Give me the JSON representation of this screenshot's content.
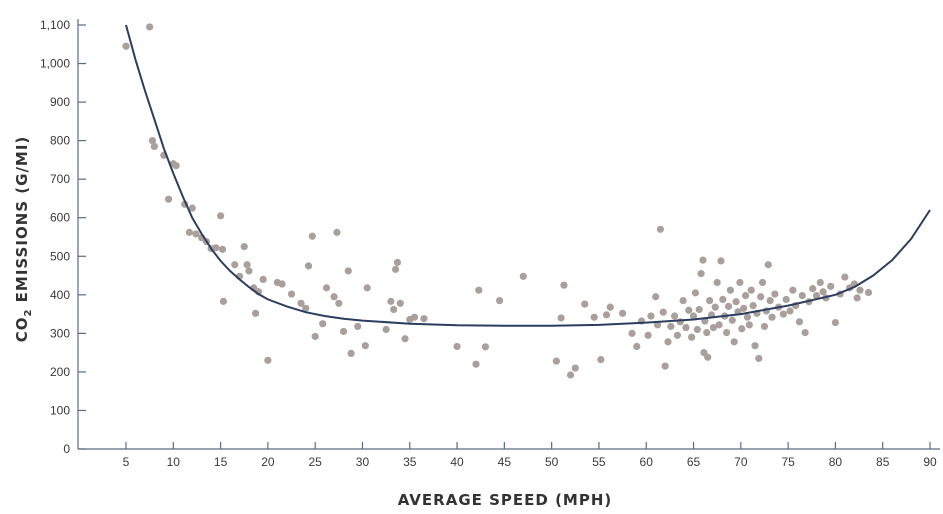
{
  "chart_data": {
    "type": "scatter",
    "title": "",
    "xlabel": "AVERAGE SPEED (MPH)",
    "ylabel": {
      "prefix": "CO",
      "subscript": "2",
      "suffix": " EMISSIONS (G/MI)"
    },
    "xlim": [
      5,
      90
    ],
    "ylim": [
      0,
      1100
    ],
    "x_ticks": [
      5,
      10,
      15,
      20,
      25,
      30,
      35,
      40,
      45,
      50,
      55,
      60,
      65,
      70,
      75,
      80,
      85,
      90
    ],
    "x_tick_labels": [
      "5",
      "10",
      "15",
      "20",
      "25",
      "30",
      "35",
      "40",
      "45",
      "50",
      "55",
      "60",
      "65",
      "70",
      "75",
      "80",
      "85",
      "90"
    ],
    "y_ticks": [
      0,
      100,
      200,
      300,
      400,
      500,
      600,
      700,
      800,
      900,
      1000,
      1100
    ],
    "y_tick_labels": [
      "0",
      "100",
      "200",
      "300",
      "400",
      "500",
      "600",
      "700",
      "800",
      "900",
      "1,000",
      "1,100"
    ],
    "grid": false,
    "colors": {
      "points": "#a9a09c",
      "curve": "#2c3e5f",
      "axis": "#5a6a85",
      "text": "#333333"
    },
    "series": [
      {
        "type": "scatter",
        "points": [
          [
            5.0,
            1045
          ],
          [
            7.5,
            1095
          ],
          [
            7.8,
            800
          ],
          [
            8.0,
            785
          ],
          [
            9.0,
            762
          ],
          [
            9.5,
            648
          ],
          [
            10.0,
            740
          ],
          [
            10.3,
            735
          ],
          [
            11.2,
            635
          ],
          [
            12.0,
            625
          ],
          [
            11.7,
            562
          ],
          [
            12.4,
            558
          ],
          [
            13.0,
            548
          ],
          [
            13.5,
            538
          ],
          [
            14.0,
            520
          ],
          [
            14.5,
            522
          ],
          [
            15.0,
            605
          ],
          [
            15.2,
            518
          ],
          [
            15.3,
            383
          ],
          [
            16.5,
            478
          ],
          [
            17.0,
            448
          ],
          [
            17.5,
            525
          ],
          [
            17.8,
            478
          ],
          [
            18.0,
            462
          ],
          [
            18.5,
            418
          ],
          [
            18.7,
            352
          ],
          [
            19.0,
            408
          ],
          [
            19.5,
            440
          ],
          [
            20.0,
            230
          ],
          [
            21.0,
            432
          ],
          [
            21.5,
            428
          ],
          [
            22.5,
            402
          ],
          [
            23.5,
            378
          ],
          [
            24.0,
            365
          ],
          [
            24.3,
            475
          ],
          [
            24.7,
            552
          ],
          [
            25.0,
            292
          ],
          [
            25.8,
            325
          ],
          [
            26.2,
            418
          ],
          [
            27.0,
            395
          ],
          [
            27.3,
            562
          ],
          [
            27.5,
            378
          ],
          [
            28.0,
            305
          ],
          [
            28.5,
            462
          ],
          [
            28.8,
            248
          ],
          [
            29.5,
            318
          ],
          [
            30.5,
            418
          ],
          [
            30.3,
            268
          ],
          [
            32.5,
            310
          ],
          [
            33.0,
            383
          ],
          [
            33.3,
            362
          ],
          [
            33.5,
            466
          ],
          [
            33.7,
            484
          ],
          [
            34.0,
            378
          ],
          [
            34.5,
            286
          ],
          [
            35.0,
            336
          ],
          [
            35.5,
            342
          ],
          [
            36.5,
            338
          ],
          [
            40.0,
            266
          ],
          [
            42.0,
            220
          ],
          [
            42.3,
            412
          ],
          [
            43.0,
            265
          ],
          [
            44.5,
            385
          ],
          [
            47.0,
            448
          ],
          [
            50.5,
            228
          ],
          [
            51.0,
            340
          ],
          [
            51.3,
            425
          ],
          [
            52.0,
            192
          ],
          [
            52.5,
            210
          ],
          [
            53.5,
            376
          ],
          [
            54.5,
            342
          ],
          [
            55.2,
            232
          ],
          [
            55.8,
            348
          ],
          [
            56.2,
            368
          ],
          [
            57.5,
            352
          ],
          [
            58.5,
            300
          ],
          [
            59.0,
            266
          ],
          [
            59.5,
            332
          ],
          [
            60.2,
            295
          ],
          [
            60.5,
            345
          ],
          [
            61.0,
            395
          ],
          [
            61.2,
            322
          ],
          [
            61.5,
            570
          ],
          [
            61.8,
            355
          ],
          [
            62.0,
            215
          ],
          [
            62.3,
            278
          ],
          [
            62.6,
            318
          ],
          [
            63.0,
            345
          ],
          [
            63.3,
            295
          ],
          [
            63.6,
            330
          ],
          [
            63.9,
            385
          ],
          [
            64.2,
            315
          ],
          [
            64.5,
            360
          ],
          [
            64.8,
            290
          ],
          [
            65.0,
            345
          ],
          [
            65.2,
            405
          ],
          [
            65.4,
            310
          ],
          [
            65.6,
            362
          ],
          [
            65.8,
            455
          ],
          [
            66.0,
            490
          ],
          [
            66.1,
            250
          ],
          [
            66.2,
            332
          ],
          [
            66.4,
            302
          ],
          [
            66.5,
            238
          ],
          [
            66.7,
            385
          ],
          [
            66.9,
            348
          ],
          [
            67.1,
            315
          ],
          [
            67.3,
            368
          ],
          [
            67.5,
            432
          ],
          [
            67.7,
            322
          ],
          [
            67.9,
            488
          ],
          [
            68.1,
            388
          ],
          [
            68.3,
            345
          ],
          [
            68.5,
            302
          ],
          [
            68.7,
            370
          ],
          [
            68.9,
            412
          ],
          [
            69.1,
            334
          ],
          [
            69.3,
            278
          ],
          [
            69.5,
            382
          ],
          [
            69.7,
            356
          ],
          [
            69.9,
            432
          ],
          [
            70.1,
            312
          ],
          [
            70.3,
            365
          ],
          [
            70.5,
            398
          ],
          [
            70.7,
            342
          ],
          [
            70.9,
            322
          ],
          [
            71.1,
            412
          ],
          [
            71.3,
            372
          ],
          [
            71.5,
            268
          ],
          [
            71.7,
            352
          ],
          [
            71.9,
            235
          ],
          [
            72.1,
            395
          ],
          [
            72.3,
            432
          ],
          [
            72.5,
            318
          ],
          [
            72.7,
            358
          ],
          [
            72.9,
            478
          ],
          [
            73.1,
            385
          ],
          [
            73.3,
            342
          ],
          [
            73.6,
            402
          ],
          [
            74.0,
            368
          ],
          [
            74.5,
            350
          ],
          [
            74.8,
            388
          ],
          [
            75.2,
            358
          ],
          [
            75.5,
            412
          ],
          [
            75.8,
            372
          ],
          [
            76.2,
            330
          ],
          [
            76.5,
            398
          ],
          [
            76.8,
            302
          ],
          [
            77.2,
            382
          ],
          [
            77.6,
            416
          ],
          [
            78.0,
            398
          ],
          [
            78.4,
            432
          ],
          [
            78.7,
            408
          ],
          [
            79.0,
            392
          ],
          [
            79.5,
            422
          ],
          [
            80.0,
            328
          ],
          [
            80.5,
            402
          ],
          [
            81.0,
            446
          ],
          [
            81.5,
            418
          ],
          [
            82.0,
            428
          ],
          [
            82.3,
            392
          ],
          [
            82.6,
            412
          ],
          [
            83.5,
            406
          ]
        ]
      },
      {
        "type": "line",
        "points": [
          [
            5.0,
            1100
          ],
          [
            6.0,
            1010
          ],
          [
            7.0,
            930
          ],
          [
            8.0,
            855
          ],
          [
            9.0,
            780
          ],
          [
            10.0,
            715
          ],
          [
            11.0,
            655
          ],
          [
            12.0,
            600
          ],
          [
            13.0,
            558
          ],
          [
            14.0,
            520
          ],
          [
            15.0,
            488
          ],
          [
            16.0,
            462
          ],
          [
            17.0,
            440
          ],
          [
            18.0,
            420
          ],
          [
            19.0,
            402
          ],
          [
            20.0,
            388
          ],
          [
            22.0,
            370
          ],
          [
            24.0,
            355
          ],
          [
            26.0,
            345
          ],
          [
            28.0,
            338
          ],
          [
            30.0,
            333
          ],
          [
            35.0,
            325
          ],
          [
            40.0,
            321
          ],
          [
            45.0,
            320
          ],
          [
            50.0,
            320
          ],
          [
            55.0,
            322
          ],
          [
            60.0,
            328
          ],
          [
            65.0,
            336
          ],
          [
            70.0,
            350
          ],
          [
            75.0,
            372
          ],
          [
            80.0,
            400
          ],
          [
            82.0,
            420
          ],
          [
            84.0,
            450
          ],
          [
            86.0,
            490
          ],
          [
            88.0,
            545
          ],
          [
            90.0,
            620
          ]
        ]
      }
    ]
  }
}
